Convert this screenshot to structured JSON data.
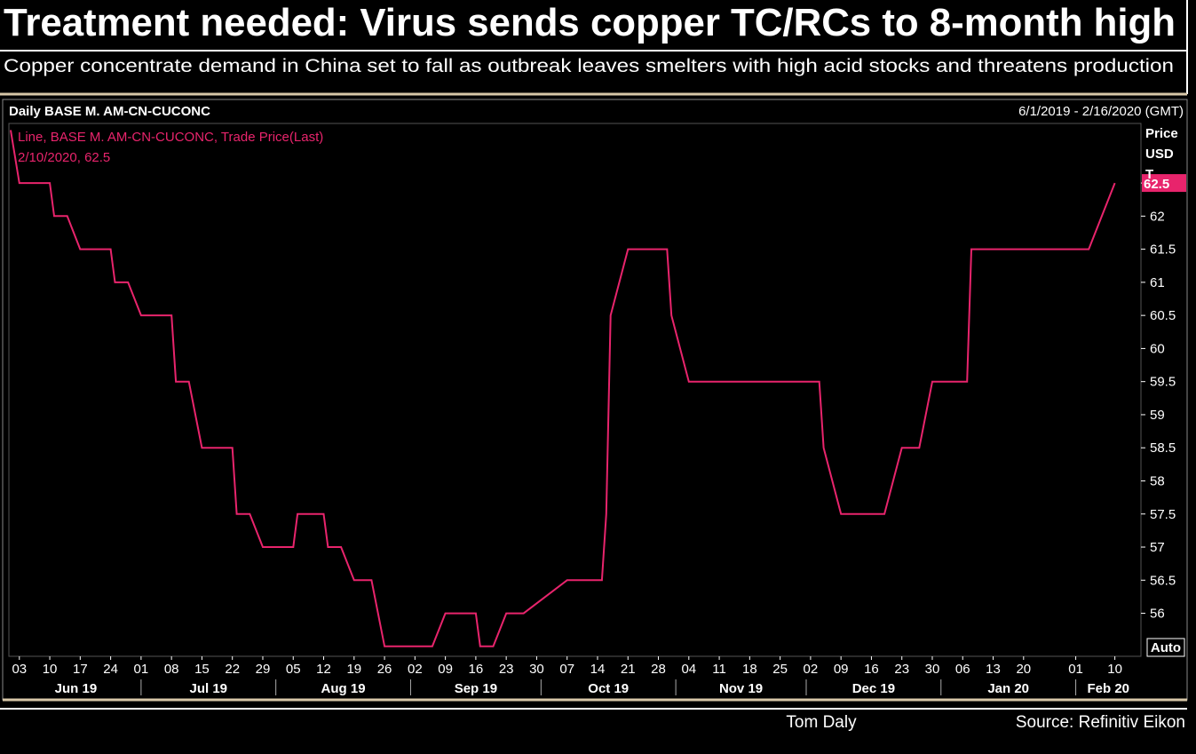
{
  "headline": "Treatment needed: Virus sends copper TC/RCs to 8-month high",
  "subheadline": "Copper concentrate demand in China set to fall as outbreak leaves smelters with high acid stocks and threatens production",
  "chart_data": {
    "type": "line",
    "title": "Daily BASE M. AM-CN-CUCONC",
    "date_range": "6/1/2019 - 2/16/2020 (GMT)",
    "annotation": "2/10/2020, 62.5",
    "y_label": "Price USD T",
    "auto_button": "Auto",
    "x": [
      "2019-06-01",
      "2019-06-03",
      "2019-06-10",
      "2019-06-11",
      "2019-06-14",
      "2019-06-17",
      "2019-06-24",
      "2019-06-25",
      "2019-06-28",
      "2019-07-01",
      "2019-07-08",
      "2019-07-09",
      "2019-07-12",
      "2019-07-15",
      "2019-07-22",
      "2019-07-23",
      "2019-07-26",
      "2019-07-29",
      "2019-08-05",
      "2019-08-06",
      "2019-08-12",
      "2019-08-13",
      "2019-08-16",
      "2019-08-19",
      "2019-08-23",
      "2019-08-26",
      "2019-09-06",
      "2019-09-09",
      "2019-09-16",
      "2019-09-17",
      "2019-09-20",
      "2019-09-23",
      "2019-09-27",
      "2019-10-07",
      "2019-10-15",
      "2019-10-16",
      "2019-10-17",
      "2019-10-21",
      "2019-10-30",
      "2019-10-31",
      "2019-11-04",
      "2019-12-04",
      "2019-12-05",
      "2019-12-09",
      "2019-12-19",
      "2019-12-23",
      "2019-12-27",
      "2019-12-30",
      "2020-01-07",
      "2020-01-08",
      "2020-02-04",
      "2020-02-10"
    ],
    "series": [
      {
        "name": "Line, BASE M. AM-CN-CUCONC, Trade Price(Last)",
        "color": "#e8246c",
        "values": [
          63.3,
          62.5,
          62.5,
          62,
          62,
          61.5,
          61.5,
          61,
          61,
          60.5,
          60.5,
          59.5,
          59.5,
          58.5,
          58.5,
          57.5,
          57.5,
          57,
          57,
          57.5,
          57.5,
          57,
          57,
          56.5,
          56.5,
          55.5,
          55.5,
          56,
          56,
          55.5,
          55.5,
          56,
          56,
          56.5,
          56.5,
          57.5,
          60.5,
          61.5,
          61.5,
          60.5,
          59.5,
          59.5,
          58.5,
          57.5,
          57.5,
          58.5,
          58.5,
          59.5,
          59.5,
          61.5,
          61.5,
          62.5
        ]
      }
    ],
    "xlim": [
      "2019-06-01",
      "2020-02-16"
    ],
    "xticks": [
      {
        "value": "2019-06-03",
        "label": "03"
      },
      {
        "value": "2019-06-10",
        "label": "10"
      },
      {
        "value": "2019-06-17",
        "label": "17"
      },
      {
        "value": "2019-06-24",
        "label": "24"
      },
      {
        "value": "2019-07-01",
        "label": "01"
      },
      {
        "value": "2019-07-08",
        "label": "08"
      },
      {
        "value": "2019-07-15",
        "label": "15"
      },
      {
        "value": "2019-07-22",
        "label": "22"
      },
      {
        "value": "2019-07-29",
        "label": "29"
      },
      {
        "value": "2019-08-05",
        "label": "05"
      },
      {
        "value": "2019-08-12",
        "label": "12"
      },
      {
        "value": "2019-08-19",
        "label": "19"
      },
      {
        "value": "2019-08-26",
        "label": "26"
      },
      {
        "value": "2019-09-02",
        "label": "02"
      },
      {
        "value": "2019-09-09",
        "label": "09"
      },
      {
        "value": "2019-09-16",
        "label": "16"
      },
      {
        "value": "2019-09-23",
        "label": "23"
      },
      {
        "value": "2019-09-30",
        "label": "30"
      },
      {
        "value": "2019-10-07",
        "label": "07"
      },
      {
        "value": "2019-10-14",
        "label": "14"
      },
      {
        "value": "2019-10-21",
        "label": "21"
      },
      {
        "value": "2019-10-28",
        "label": "28"
      },
      {
        "value": "2019-11-04",
        "label": "04"
      },
      {
        "value": "2019-11-11",
        "label": "11"
      },
      {
        "value": "2019-11-18",
        "label": "18"
      },
      {
        "value": "2019-11-25",
        "label": "25"
      },
      {
        "value": "2019-12-02",
        "label": "02"
      },
      {
        "value": "2019-12-09",
        "label": "09"
      },
      {
        "value": "2019-12-16",
        "label": "16"
      },
      {
        "value": "2019-12-23",
        "label": "23"
      },
      {
        "value": "2019-12-30",
        "label": "30"
      },
      {
        "value": "2020-01-06",
        "label": "06"
      },
      {
        "value": "2020-01-13",
        "label": "13"
      },
      {
        "value": "2020-01-20",
        "label": "20"
      },
      {
        "value": "2020-02-01",
        "label": "01"
      },
      {
        "value": "2020-02-10",
        "label": "10"
      }
    ],
    "months": [
      {
        "value": "2019-06",
        "label": "Jun 19"
      },
      {
        "value": "2019-07",
        "label": "Jul 19"
      },
      {
        "value": "2019-08",
        "label": "Aug 19"
      },
      {
        "value": "2019-09",
        "label": "Sep 19"
      },
      {
        "value": "2019-10",
        "label": "Oct 19"
      },
      {
        "value": "2019-11",
        "label": "Nov 19"
      },
      {
        "value": "2019-12",
        "label": "Dec 19"
      },
      {
        "value": "2020-01",
        "label": "Jan 20"
      },
      {
        "value": "2020-02",
        "label": "Feb 20"
      }
    ],
    "ylim": [
      55.35,
      63.4
    ],
    "yticks": [
      56,
      56.5,
      57,
      57.5,
      58,
      58.5,
      59,
      59.5,
      60,
      60.5,
      61,
      61.5,
      62,
      62.5
    ]
  },
  "footer": {
    "author": "Tom Daly",
    "source": "Source: Refinitiv Eikon"
  }
}
